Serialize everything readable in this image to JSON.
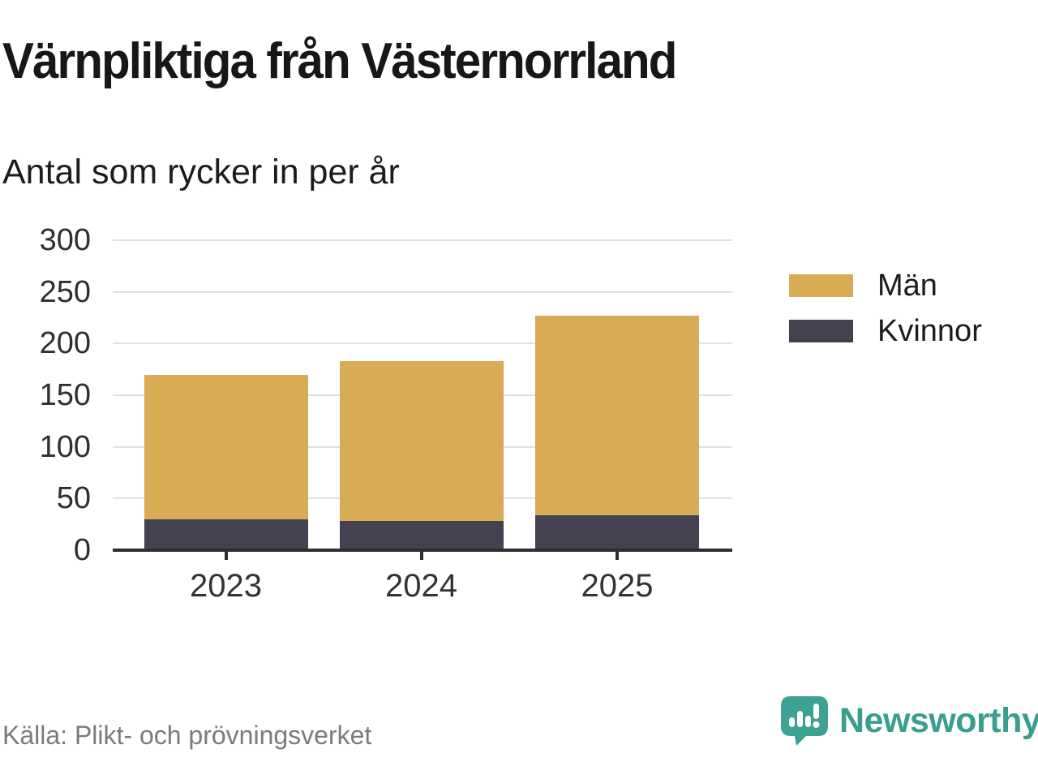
{
  "header": {
    "title": "Värnpliktiga från Västernorrland",
    "subtitle": "Antal som rycker in per år"
  },
  "footer": {
    "source": "Källa: Plikt- och prövningsverket",
    "brand_name": "Newsworthy"
  },
  "colors": {
    "men": "#d8ab55",
    "women": "#444250",
    "grid": "#e1e1e1",
    "axis": "#2e2e2e",
    "brand_teal": "#3da294"
  },
  "legend": {
    "items": [
      {
        "label": "Män",
        "color": "#d8ab55"
      },
      {
        "label": "Kvinnor",
        "color": "#444250"
      }
    ]
  },
  "chart_data": {
    "type": "bar",
    "stacked": true,
    "title": "Värnpliktiga från Västernorrland",
    "subtitle": "Antal som rycker in per år",
    "categories": [
      "2023",
      "2024",
      "2025"
    ],
    "series": [
      {
        "name": "Kvinnor",
        "color": "#444250",
        "values": [
          30,
          28,
          34
        ]
      },
      {
        "name": "Män",
        "color": "#d8ab55",
        "values": [
          140,
          155,
          193
        ]
      }
    ],
    "totals": [
      170,
      183,
      227
    ],
    "xlabel": "",
    "ylabel": "",
    "ylim": [
      0,
      300
    ],
    "yticks": [
      0,
      50,
      100,
      150,
      200,
      250,
      300
    ],
    "grid": true,
    "legend_position": "right"
  }
}
